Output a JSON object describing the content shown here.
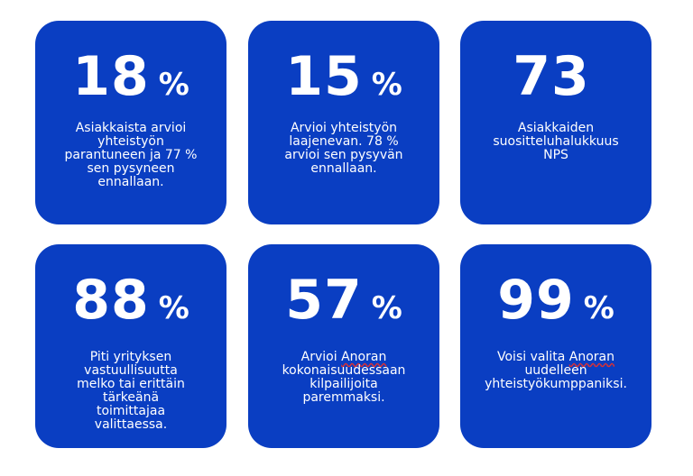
{
  "cards": [
    {
      "value": "18",
      "unit": "%",
      "text": "Asiakkaista arvioi\nyhteistyön\nparantuneen ja 77 %\nsen pysyneen\nennallaan."
    },
    {
      "value": "15",
      "unit": "%",
      "text": "Arvioi yhteistyön\nlaajenevan. 78 %\narvioi sen pysyvän\nennallaan."
    },
    {
      "value": "73",
      "unit": "",
      "text": "Asiakkaiden\nsuositteluhalukkuus\nNPS"
    },
    {
      "value": "88",
      "unit": "%",
      "text": "Piti yrityksen\nvastuullisuutta\nmelko tai erittäin\ntärkeänä\ntoimittajaa\nvalittaessa."
    },
    {
      "value": "57",
      "unit": "%",
      "text_before": "Arvioi ",
      "brand": "Anoran",
      "text_after": "\nkokonaisuudessaan\nkilpailijoita\nparemmaksi."
    },
    {
      "value": "99",
      "unit": "%",
      "text_before": "Voisi valita ",
      "brand": "Anoran",
      "text_after": "\nuudelleen\nyhteistyökumppaniksi."
    }
  ]
}
